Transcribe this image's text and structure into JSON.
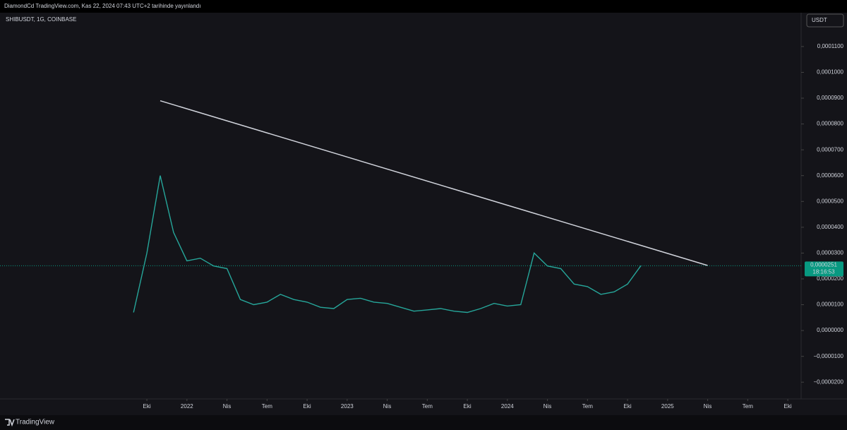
{
  "header": {
    "publisher": "DiamondCd TradingView.com, Kas 22, 2024 07:43 UTC+2 tarihinde yayınlandı",
    "currency": "USDT",
    "brand": "TradingView"
  },
  "chart_data": {
    "type": "line",
    "title": "SHIBUSDT, 1G, COINBASE",
    "color": "#26a69a",
    "x": [
      "2021-09",
      "2021-10",
      "2021-11",
      "2021-12",
      "2022-01",
      "2022-02",
      "2022-03",
      "2022-04",
      "2022-05",
      "2022-06",
      "2022-07",
      "2022-08",
      "2022-09",
      "2022-10",
      "2022-11",
      "2022-12",
      "2023-01",
      "2023-02",
      "2023-03",
      "2023-04",
      "2023-05",
      "2023-06",
      "2023-07",
      "2023-08",
      "2023-09",
      "2023-10",
      "2023-11",
      "2023-12",
      "2024-01",
      "2024-02",
      "2024-03",
      "2024-04",
      "2024-05",
      "2024-06",
      "2024-07",
      "2024-08",
      "2024-09",
      "2024-10",
      "2024-11"
    ],
    "values": [
      7e-06,
      3e-05,
      6e-05,
      3.8e-05,
      2.7e-05,
      2.8e-05,
      2.5e-05,
      2.4e-05,
      1.2e-05,
      1e-05,
      1.1e-05,
      1.4e-05,
      1.2e-05,
      1.1e-05,
      9e-06,
      8.5e-06,
      1.2e-05,
      1.25e-05,
      1.1e-05,
      1.05e-05,
      9e-06,
      7.5e-06,
      8e-06,
      8.5e-06,
      7.5e-06,
      7e-06,
      8.5e-06,
      1.05e-05,
      9.5e-06,
      1e-05,
      3e-05,
      2.5e-05,
      2.4e-05,
      1.8e-05,
      1.7e-05,
      1.4e-05,
      1.5e-05,
      1.8e-05,
      2.51e-05
    ],
    "trendline": {
      "x": [
        "2021-11",
        "2025-04"
      ],
      "values": [
        8.9e-05,
        2.52e-05
      ],
      "color": "#d1d4dc"
    },
    "last_price": {
      "value": 2.51e-05,
      "label": "0,0000251"
    },
    "countdown": "18:16:53",
    "xlim": [
      "2020-11",
      "2025-11"
    ],
    "xticks": [
      {
        "value": "2021-10",
        "label": "Eki"
      },
      {
        "value": "2022-01",
        "label": "2022"
      },
      {
        "value": "2022-04",
        "label": "Nis"
      },
      {
        "value": "2022-07",
        "label": "Tem"
      },
      {
        "value": "2022-10",
        "label": "Eki"
      },
      {
        "value": "2023-01",
        "label": "2023"
      },
      {
        "value": "2023-04",
        "label": "Nis"
      },
      {
        "value": "2023-07",
        "label": "Tem"
      },
      {
        "value": "2023-10",
        "label": "Eki"
      },
      {
        "value": "2024-01",
        "label": "2024"
      },
      {
        "value": "2024-04",
        "label": "Nis"
      },
      {
        "value": "2024-07",
        "label": "Tem"
      },
      {
        "value": "2024-10",
        "label": "Eki"
      },
      {
        "value": "2025-01",
        "label": "2025"
      },
      {
        "value": "2025-04",
        "label": "Nis"
      },
      {
        "value": "2025-07",
        "label": "Tem"
      },
      {
        "value": "2025-10",
        "label": "Eki"
      }
    ],
    "ylim": [
      -2.65e-05,
      0.0001231
    ],
    "yticks": [
      {
        "value": -2e-05,
        "label": "−0,0000200"
      },
      {
        "value": -1e-05,
        "label": "−0,0000100"
      },
      {
        "value": 0,
        "label": "0,0000000"
      },
      {
        "value": 1e-05,
        "label": "0,0000100"
      },
      {
        "value": 2e-05,
        "label": "0,0000200"
      },
      {
        "value": 3e-05,
        "label": "0,0000300"
      },
      {
        "value": 4e-05,
        "label": "0,0000400"
      },
      {
        "value": 5e-05,
        "label": "0,0000500"
      },
      {
        "value": 6e-05,
        "label": "0,0000600"
      },
      {
        "value": 7e-05,
        "label": "0,0000700"
      },
      {
        "value": 8e-05,
        "label": "0,0000800"
      },
      {
        "value": 9e-05,
        "label": "0,0000900"
      },
      {
        "value": 0.0001,
        "label": "0,0001000"
      },
      {
        "value": 0.00011,
        "label": "0,0001100"
      }
    ]
  }
}
